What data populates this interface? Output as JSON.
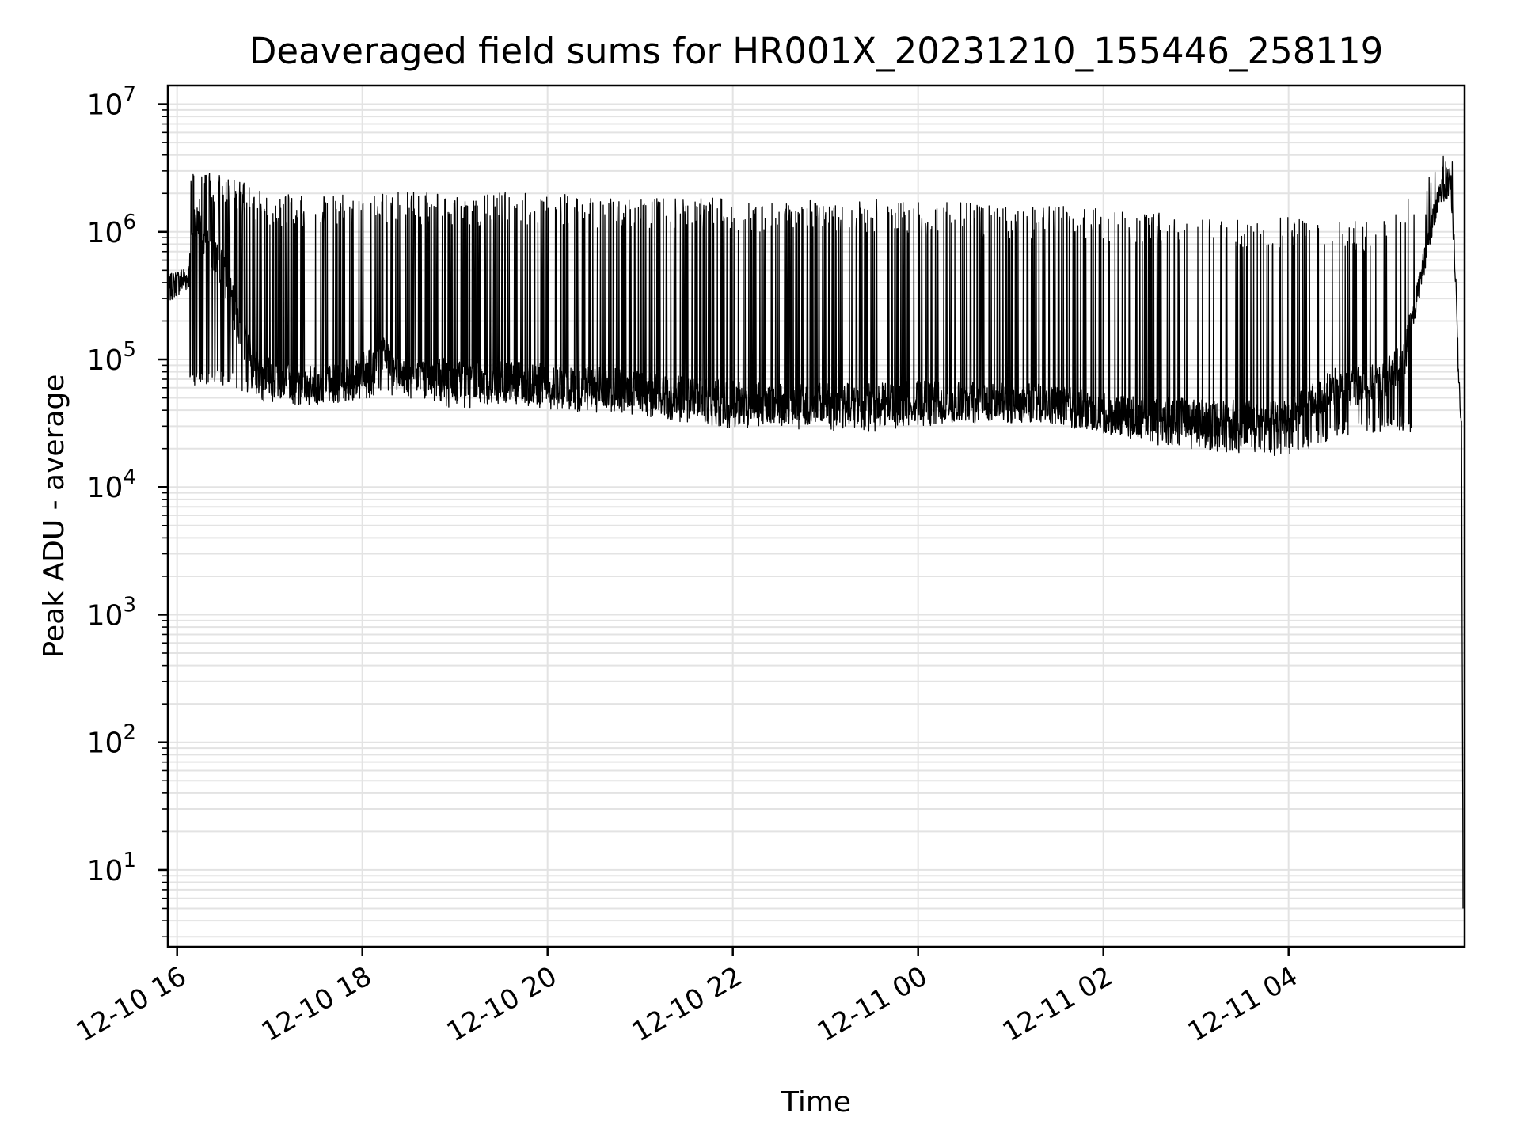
{
  "chart_data": {
    "type": "line",
    "title": "Deaveraged field sums for HR001X_20231210_155446_258119",
    "xlabel": "Time",
    "ylabel": "Peak ADU - average",
    "yscale": "log",
    "ylim": [
      2.5,
      14000000
    ],
    "xlim": [
      "2023-12-10 15:54",
      "2023-12-11 05:54"
    ],
    "grid": true,
    "line_color": "#000000",
    "x_ticks": [
      {
        "label": "12-10 16",
        "t": "2023-12-10 16:00"
      },
      {
        "label": "12-10 18",
        "t": "2023-12-10 18:00"
      },
      {
        "label": "12-10 20",
        "t": "2023-12-10 20:00"
      },
      {
        "label": "12-10 22",
        "t": "2023-12-10 22:00"
      },
      {
        "label": "12-11 00",
        "t": "2023-12-11 00:00"
      },
      {
        "label": "12-11 02",
        "t": "2023-12-11 02:00"
      },
      {
        "label": "12-11 04",
        "t": "2023-12-11 04:00"
      }
    ],
    "y_ticks": [
      {
        "base": "10",
        "exp": "1",
        "value": 10
      },
      {
        "base": "10",
        "exp": "2",
        "value": 100
      },
      {
        "base": "10",
        "exp": "3",
        "value": 1000
      },
      {
        "base": "10",
        "exp": "4",
        "value": 10000
      },
      {
        "base": "10",
        "exp": "5",
        "value": 100000
      },
      {
        "base": "10",
        "exp": "6",
        "value": 1000000
      },
      {
        "base": "10",
        "exp": "7",
        "value": 10000000
      }
    ],
    "series": [
      {
        "x": [
          "2023-12-10 15:54",
          "2023-12-10 16:00",
          "2023-12-10 16:08",
          "2023-12-10 16:10",
          "2023-12-10 16:20",
          "2023-12-10 16:30",
          "2023-12-10 16:40",
          "2023-12-10 16:50",
          "2023-12-10 17:00",
          "2023-12-10 17:15",
          "2023-12-10 17:30",
          "2023-12-10 17:45",
          "2023-12-10 18:00",
          "2023-12-10 18:15",
          "2023-12-10 18:30",
          "2023-12-10 18:45",
          "2023-12-10 19:00",
          "2023-12-10 19:30",
          "2023-12-10 20:00",
          "2023-12-10 20:30",
          "2023-12-10 21:00",
          "2023-12-10 21:30",
          "2023-12-10 22:00",
          "2023-12-10 22:30",
          "2023-12-10 23:00",
          "2023-12-10 23:30",
          "2023-12-11 00:00",
          "2023-12-11 00:30",
          "2023-12-11 01:00",
          "2023-12-11 01:30",
          "2023-12-11 02:00",
          "2023-12-11 02:30",
          "2023-12-11 03:00",
          "2023-12-11 03:30",
          "2023-12-11 04:00",
          "2023-12-11 04:30",
          "2023-12-11 05:00",
          "2023-12-11 05:15",
          "2023-12-11 05:30",
          "2023-12-11 05:38",
          "2023-12-11 05:45",
          "2023-12-11 05:48",
          "2023-12-11 05:50",
          "2023-12-11 05:52",
          "2023-12-11 05:53"
        ],
        "y": [
          350000,
          400000,
          450000,
          1300000,
          800000,
          500000,
          180000,
          90000,
          75000,
          65000,
          62000,
          65000,
          80000,
          110000,
          70000,
          75000,
          70000,
          68000,
          65000,
          62000,
          58000,
          52000,
          48000,
          45000,
          46000,
          47000,
          48000,
          47000,
          46000,
          45000,
          38000,
          36000,
          35000,
          34000,
          35000,
          60000,
          65000,
          100000,
          800000,
          2000000,
          2500000,
          500000,
          80000,
          30000,
          5
        ]
      },
      {
        "x": [
          "2023-12-10 16:08",
          "2023-12-10 16:30",
          "2023-12-10 17:00",
          "2023-12-10 17:30",
          "2023-12-10 18:00",
          "2023-12-10 18:30",
          "2023-12-10 19:00",
          "2023-12-10 19:30",
          "2023-12-10 20:00",
          "2023-12-10 20:30",
          "2023-12-10 21:00",
          "2023-12-10 21:30",
          "2023-12-10 22:00",
          "2023-12-10 22:30",
          "2023-12-10 23:00",
          "2023-12-10 23:30",
          "2023-12-11 00:00",
          "2023-12-11 00:30",
          "2023-12-11 01:00",
          "2023-12-11 01:30",
          "2023-12-11 02:00",
          "2023-12-11 02:30",
          "2023-12-11 03:00",
          "2023-12-11 03:30",
          "2023-12-11 04:00",
          "2023-12-11 04:30",
          "2023-12-11 05:00",
          "2023-12-11 05:30",
          "2023-12-11 05:40",
          "2023-12-11 05:45"
        ],
        "y": [
          3000000,
          2800000,
          2000000,
          2000000,
          1900000,
          2100000,
          1900000,
          2100000,
          2000000,
          1900000,
          1800000,
          1900000,
          1800000,
          1700000,
          1800000,
          1800000,
          1700000,
          1700000,
          1600000,
          1600000,
          1500000,
          1400000,
          1400000,
          1300000,
          1300000,
          1200000,
          1300000,
          2500000,
          6500000,
          5000000
        ]
      },
      {
        "x": [
          "2023-12-10 16:30",
          "2023-12-10 17:00",
          "2023-12-10 17:30",
          "2023-12-10 18:00",
          "2023-12-10 18:30",
          "2023-12-10 19:00",
          "2023-12-10 19:30",
          "2023-12-10 20:00",
          "2023-12-10 20:30",
          "2023-12-10 21:00",
          "2023-12-10 21:30",
          "2023-12-10 22:00",
          "2023-12-10 22:30",
          "2023-12-10 23:00",
          "2023-12-10 23:30",
          "2023-12-11 00:00",
          "2023-12-11 00:30",
          "2023-12-11 01:00",
          "2023-12-11 01:30",
          "2023-12-11 02:00",
          "2023-12-11 02:30",
          "2023-12-11 03:00",
          "2023-12-11 03:30",
          "2023-12-11 04:00",
          "2023-12-11 04:30",
          "2023-12-11 05:00"
        ],
        "y": [
          70000,
          50000,
          48000,
          55000,
          60000,
          45000,
          50000,
          45000,
          42000,
          40000,
          35000,
          32000,
          33000,
          30000,
          30000,
          33000,
          35000,
          35000,
          34000,
          28000,
          24000,
          22000,
          20000,
          19000,
          27000,
          30000
        ]
      }
    ]
  }
}
